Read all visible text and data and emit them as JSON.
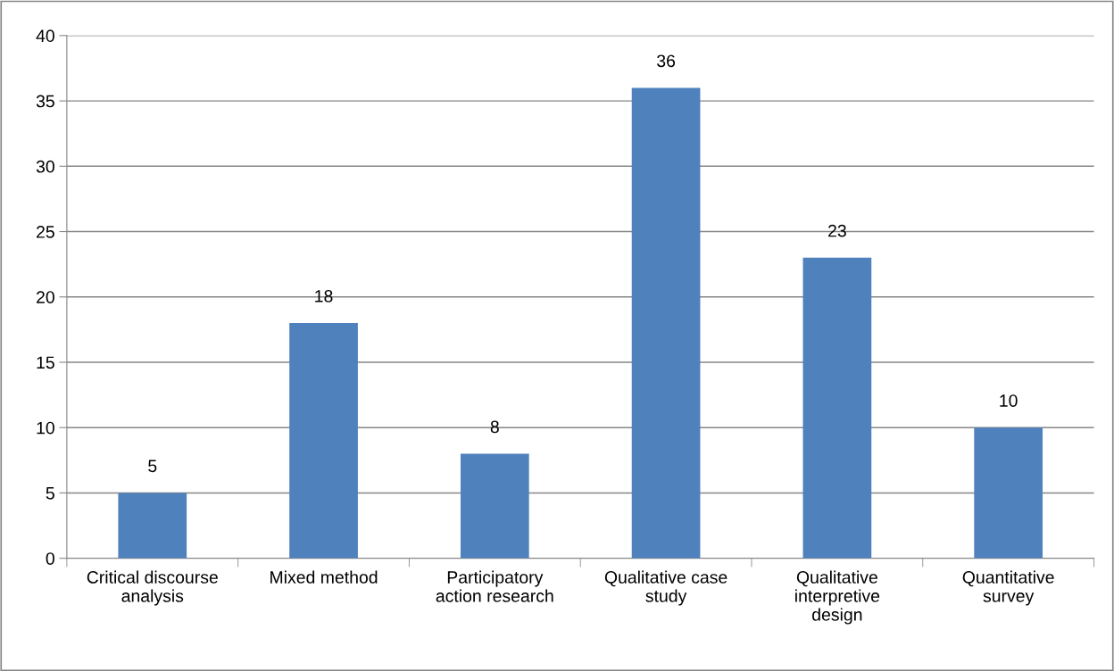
{
  "chart_data": {
    "type": "bar",
    "categories": [
      "Critical discourse\nanalysis",
      "Mixed method",
      "Participatory\naction research",
      "Qualitative case\nstudy",
      "Qualitative\ninterpretive\ndesign",
      "Quantitative\nsurvey"
    ],
    "values": [
      5,
      18,
      8,
      36,
      23,
      10
    ],
    "color": "#4f81bd",
    "ylim": [
      0,
      40
    ],
    "yticks": [
      0,
      5,
      10,
      15,
      20,
      25,
      30,
      35,
      40
    ],
    "grid": "y",
    "data_labels": true,
    "legend": false
  }
}
